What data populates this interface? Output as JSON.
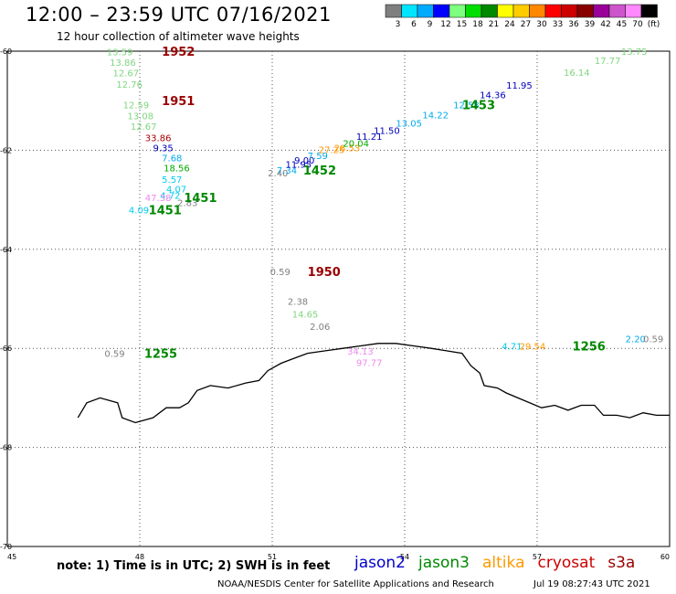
{
  "header": {
    "title": "12:00 – 23:59 UTC 07/16/2021",
    "subtitle": "12 hour collection of altimeter wave heights"
  },
  "colorbar": {
    "bins": [
      {
        "label": "3",
        "color": "#7f7f7f"
      },
      {
        "label": "6",
        "color": "#00e5ff"
      },
      {
        "label": "9",
        "color": "#00aaff"
      },
      {
        "label": "12",
        "color": "#0000ff"
      },
      {
        "label": "15",
        "color": "#7fff7f"
      },
      {
        "label": "18",
        "color": "#00dd00"
      },
      {
        "label": "21",
        "color": "#008800"
      },
      {
        "label": "24",
        "color": "#ffff00"
      },
      {
        "label": "27",
        "color": "#ffcc00"
      },
      {
        "label": "30",
        "color": "#ff8800"
      },
      {
        "label": "33",
        "color": "#ff0000"
      },
      {
        "label": "36",
        "color": "#cc0000"
      },
      {
        "label": "39",
        "color": "#880000"
      },
      {
        "label": "42",
        "color": "#990099"
      },
      {
        "label": "45",
        "color": "#cc55cc"
      },
      {
        "label": "70",
        "color": "#ff88ff"
      },
      {
        "label": "",
        "color": "#000000"
      }
    ],
    "unit": "(ft)"
  },
  "footer": {
    "note": "note:  1) Time is in UTC;  2) SWH is in feet",
    "satellites": [
      {
        "name": "jason2",
        "color": "#0000cc"
      },
      {
        "name": "jason3",
        "color": "#008800"
      },
      {
        "name": "altika",
        "color": "#ff9900"
      },
      {
        "name": "cryosat",
        "color": "#cc0000"
      },
      {
        "name": "s3a",
        "color": "#990000"
      }
    ],
    "credit": "NOAA/NESDIS Center for Satellite Applications and Research",
    "timestamp": "Jul 19 08:27:43 UTC 2021"
  },
  "chart_data": {
    "type": "scatter",
    "xlim": [
      45,
      60
    ],
    "ylim": [
      -70,
      -60
    ],
    "x_ticks": [
      "45",
      "48",
      "51",
      "54",
      "57",
      "60"
    ],
    "y_ticks": [
      "-60",
      "-62",
      "-64",
      "-66",
      "-68",
      "-70"
    ],
    "grid": true,
    "points": [
      {
        "lon": 47.25,
        "lat": -60.01,
        "value": "13.59",
        "color": "#7fd67f"
      },
      {
        "lon": 47.32,
        "lat": -60.22,
        "value": "13.86",
        "color": "#7fd67f"
      },
      {
        "lon": 47.39,
        "lat": -60.43,
        "value": "12.67",
        "color": "#7fd67f"
      },
      {
        "lon": 47.47,
        "lat": -60.66,
        "value": "12.76",
        "color": "#7fd67f"
      },
      {
        "lon": 47.62,
        "lat": -61.08,
        "value": "12.59",
        "color": "#7fd67f"
      },
      {
        "lon": 47.72,
        "lat": -61.3,
        "value": "13.08",
        "color": "#7fd67f"
      },
      {
        "lon": 47.79,
        "lat": -61.51,
        "value": "12.67",
        "color": "#7fd67f"
      },
      {
        "lon": 48.12,
        "lat": -61.74,
        "value": "33.86",
        "color": "#aa0000"
      },
      {
        "lon": 48.3,
        "lat": -61.95,
        "value": "9.35",
        "color": "#0000bb"
      },
      {
        "lon": 48.5,
        "lat": -62.15,
        "value": "7.68",
        "color": "#00aaee"
      },
      {
        "lon": 48.54,
        "lat": -62.35,
        "value": "18.56",
        "color": "#00aa00"
      },
      {
        "lon": 48.5,
        "lat": -62.58,
        "value": "5.57",
        "color": "#00ccee"
      },
      {
        "lon": 48.6,
        "lat": -62.78,
        "value": "4.07",
        "color": "#00ccee"
      },
      {
        "lon": 48.46,
        "lat": -62.91,
        "value": "4.72",
        "color": "#00ccee"
      },
      {
        "lon": 48.12,
        "lat": -62.95,
        "value": "47.38",
        "color": "#ee88ee"
      },
      {
        "lon": 48.85,
        "lat": -63.05,
        "value": "2.83",
        "color": "#7f7f7f"
      },
      {
        "lon": 47.75,
        "lat": -63.2,
        "value": "4.09",
        "color": "#00ccee"
      },
      {
        "lon": 50.9,
        "lat": -62.45,
        "value": "2.40",
        "color": "#7f7f7f"
      },
      {
        "lon": 51.1,
        "lat": -62.4,
        "value": "7.34",
        "color": "#00aaee"
      },
      {
        "lon": 51.3,
        "lat": -62.28,
        "value": "11.95",
        "color": "#0000bb"
      },
      {
        "lon": 51.5,
        "lat": -62.2,
        "value": "9.00",
        "color": "#0000bb"
      },
      {
        "lon": 51.8,
        "lat": -62.1,
        "value": "7.59",
        "color": "#00aaee"
      },
      {
        "lon": 52.05,
        "lat": -61.98,
        "value": "27.25",
        "color": "#ff9900"
      },
      {
        "lon": 52.4,
        "lat": -61.95,
        "value": "28.53",
        "color": "#ff9900"
      },
      {
        "lon": 52.6,
        "lat": -61.85,
        "value": "20.04",
        "color": "#00aa00"
      },
      {
        "lon": 52.9,
        "lat": -61.72,
        "value": "11.21",
        "color": "#0000bb"
      },
      {
        "lon": 53.3,
        "lat": -61.6,
        "value": "11.50",
        "color": "#0000bb"
      },
      {
        "lon": 53.8,
        "lat": -61.45,
        "value": "13.05",
        "color": "#00aaee"
      },
      {
        "lon": 54.4,
        "lat": -61.28,
        "value": "14.22",
        "color": "#00aaee"
      },
      {
        "lon": 55.1,
        "lat": -61.08,
        "value": "12.58",
        "color": "#00aaee"
      },
      {
        "lon": 55.7,
        "lat": -60.88,
        "value": "14.36",
        "color": "#0000bb"
      },
      {
        "lon": 56.3,
        "lat": -60.68,
        "value": "11.95",
        "color": "#0000bb"
      },
      {
        "lon": 57.6,
        "lat": -60.42,
        "value": "16.14",
        "color": "#7fd67f"
      },
      {
        "lon": 58.3,
        "lat": -60.18,
        "value": "17.77",
        "color": "#7fd67f"
      },
      {
        "lon": 58.9,
        "lat": -60.0,
        "value": "13.75",
        "color": "#7fd67f"
      },
      {
        "lon": 50.95,
        "lat": -64.45,
        "value": "0.59",
        "color": "#7f7f7f"
      },
      {
        "lon": 51.35,
        "lat": -65.05,
        "value": "2.38",
        "color": "#7f7f7f"
      },
      {
        "lon": 51.45,
        "lat": -65.3,
        "value": "14.65",
        "color": "#7fd67f"
      },
      {
        "lon": 51.85,
        "lat": -65.55,
        "value": "2.06",
        "color": "#7f7f7f"
      },
      {
        "lon": 52.7,
        "lat": -66.05,
        "value": "34.13",
        "color": "#ee88ee"
      },
      {
        "lon": 52.9,
        "lat": -66.28,
        "value": "97.77",
        "color": "#ee88ee"
      },
      {
        "lon": 56.2,
        "lat": -65.95,
        "value": "4.71",
        "color": "#00ccee"
      },
      {
        "lon": 56.6,
        "lat": -65.95,
        "value": "29.54",
        "color": "#ff9900"
      },
      {
        "lon": 59.0,
        "lat": -65.8,
        "value": "2.20",
        "color": "#00aaee"
      },
      {
        "lon": 59.4,
        "lat": -65.8,
        "value": "0.59",
        "color": "#7f7f7f"
      },
      {
        "lon": 47.2,
        "lat": -66.1,
        "value": "0.59",
        "color": "#7f7f7f"
      }
    ],
    "track_labels": [
      {
        "lon": 48.5,
        "lat": -60.0,
        "label": "1952",
        "color": "#990000"
      },
      {
        "lon": 48.5,
        "lat": -61.0,
        "label": "1951",
        "color": "#990000"
      },
      {
        "lon": 49.0,
        "lat": -62.95,
        "label": "1451",
        "color": "#008800"
      },
      {
        "lon": 48.2,
        "lat": -63.2,
        "label": "1451",
        "color": "#008800"
      },
      {
        "lon": 51.7,
        "lat": -62.4,
        "label": "1452",
        "color": "#008800"
      },
      {
        "lon": 55.3,
        "lat": -61.08,
        "label": "1453",
        "color": "#008800"
      },
      {
        "lon": 51.8,
        "lat": -64.45,
        "label": "1950",
        "color": "#990000"
      },
      {
        "lon": 57.8,
        "lat": -65.95,
        "label": "1256",
        "color": "#008800"
      },
      {
        "lon": 48.1,
        "lat": -66.1,
        "label": "1255",
        "color": "#008800"
      }
    ],
    "coastline": [
      [
        46.6,
        -67.4
      ],
      [
        46.8,
        -67.1
      ],
      [
        47.1,
        -67.0
      ],
      [
        47.5,
        -67.1
      ],
      [
        47.6,
        -67.4
      ],
      [
        47.9,
        -67.5
      ],
      [
        48.3,
        -67.4
      ],
      [
        48.6,
        -67.2
      ],
      [
        48.9,
        -67.2
      ],
      [
        49.1,
        -67.1
      ],
      [
        49.3,
        -66.85
      ],
      [
        49.6,
        -66.75
      ],
      [
        50.0,
        -66.8
      ],
      [
        50.4,
        -66.7
      ],
      [
        50.7,
        -66.65
      ],
      [
        50.9,
        -66.45
      ],
      [
        51.2,
        -66.3
      ],
      [
        51.5,
        -66.2
      ],
      [
        51.8,
        -66.1
      ],
      [
        52.2,
        -66.05
      ],
      [
        52.6,
        -66.0
      ],
      [
        53.0,
        -65.95
      ],
      [
        53.4,
        -65.9
      ],
      [
        53.8,
        -65.9
      ],
      [
        54.2,
        -65.95
      ],
      [
        54.6,
        -66.0
      ],
      [
        54.95,
        -66.05
      ],
      [
        55.3,
        -66.1
      ],
      [
        55.5,
        -66.35
      ],
      [
        55.7,
        -66.5
      ],
      [
        55.8,
        -66.75
      ],
      [
        56.1,
        -66.8
      ],
      [
        56.3,
        -66.9
      ],
      [
        56.7,
        -67.05
      ],
      [
        57.1,
        -67.2
      ],
      [
        57.4,
        -67.15
      ],
      [
        57.7,
        -67.25
      ],
      [
        58.0,
        -67.15
      ],
      [
        58.3,
        -67.15
      ],
      [
        58.5,
        -67.35
      ],
      [
        58.8,
        -67.35
      ],
      [
        59.1,
        -67.4
      ],
      [
        59.4,
        -67.3
      ],
      [
        59.7,
        -67.35
      ],
      [
        60.0,
        -67.35
      ]
    ]
  }
}
